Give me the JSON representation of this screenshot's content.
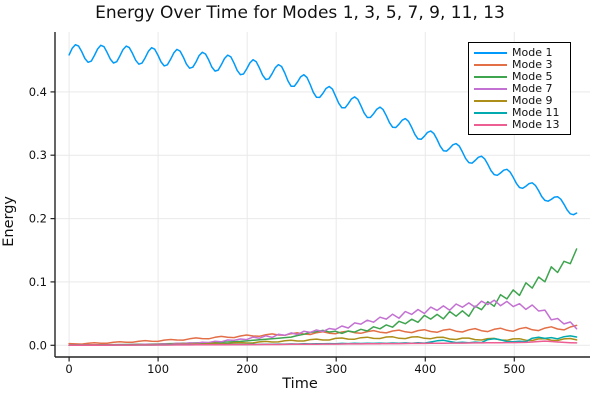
{
  "chart_data": {
    "type": "line",
    "title": "Energy Over Time for Modes 1, 3, 5, 7, 9, 11, 13",
    "xlabel": "Time",
    "ylabel": "Energy",
    "xlim": [
      -15.8,
      585
    ],
    "ylim": [
      -0.0185,
      0.4945
    ],
    "grid": true,
    "legend_position": "top-right",
    "xticks": [
      0,
      100,
      200,
      300,
      400,
      500
    ],
    "xtick_labels": [
      "0",
      "100",
      "200",
      "300",
      "400",
      "500"
    ],
    "yticks": [
      0.0,
      0.1,
      0.2,
      0.3,
      0.4
    ],
    "ytick_labels": [
      "0.0",
      "0.1",
      "0.2",
      "0.3",
      "0.4"
    ],
    "series": [
      {
        "name": "Mode 1",
        "color": "#009AFA",
        "x_start": 0,
        "x_step": 3.5625,
        "values": [
          0.4583,
          0.4687,
          0.4745,
          0.4722,
          0.4632,
          0.4526,
          0.4466,
          0.4486,
          0.4574,
          0.4677,
          0.4735,
          0.4713,
          0.4623,
          0.4517,
          0.4456,
          0.4476,
          0.4564,
          0.4667,
          0.4723,
          0.4699,
          0.4607,
          0.4498,
          0.4436,
          0.4454,
          0.454,
          0.4641,
          0.4697,
          0.4673,
          0.4581,
          0.4472,
          0.441,
          0.4428,
          0.4514,
          0.4615,
          0.467,
          0.4644,
          0.4549,
          0.4438,
          0.4374,
          0.4389,
          0.4472,
          0.4572,
          0.4625,
          0.4598,
          0.4504,
          0.4393,
          0.4328,
          0.4344,
          0.4427,
          0.4526,
          0.458,
          0.4552,
          0.4454,
          0.4339,
          0.4271,
          0.4282,
          0.4362,
          0.4457,
          0.4507,
          0.4476,
          0.4378,
          0.4263,
          0.4195,
          0.4206,
          0.4286,
          0.4381,
          0.4431,
          0.44,
          0.4298,
          0.4171,
          0.4089,
          0.4088,
          0.4155,
          0.4236,
          0.4271,
          0.4227,
          0.4117,
          0.3993,
          0.3914,
          0.3913,
          0.3976,
          0.4053,
          0.4085,
          0.4043,
          0.3936,
          0.3821,
          0.3748,
          0.3748,
          0.3812,
          0.3887,
          0.392,
          0.3882,
          0.3781,
          0.3668,
          0.3596,
          0.3597,
          0.3656,
          0.3727,
          0.3759,
          0.372,
          0.3624,
          0.3514,
          0.3443,
          0.3437,
          0.349,
          0.3553,
          0.3578,
          0.3536,
          0.3439,
          0.3329,
          0.3258,
          0.3251,
          0.3301,
          0.336,
          0.3382,
          0.3341,
          0.3248,
          0.3142,
          0.3072,
          0.3065,
          0.311,
          0.3164,
          0.3184,
          0.3144,
          0.3052,
          0.295,
          0.2883,
          0.2874,
          0.2916,
          0.2967,
          0.2984,
          0.2944,
          0.2857,
          0.2758,
          0.2694,
          0.2683,
          0.2719,
          0.2764,
          0.2778,
          0.2737,
          0.2651,
          0.2555,
          0.2491,
          0.2478,
          0.2511,
          0.2552,
          0.2564,
          0.2524,
          0.2441,
          0.2349,
          0.2287,
          0.2275,
          0.2303,
          0.2339,
          0.2346,
          0.2306,
          0.2226,
          0.2137,
          0.2075,
          0.2061,
          0.2086
        ]
      },
      {
        "name": "Mode 3",
        "color": "#E36F47",
        "x_start": 0,
        "x_step": 7.125,
        "values": [
          0.0026,
          0.0021,
          0.0019,
          0.0032,
          0.0039,
          0.0032,
          0.0032,
          0.0047,
          0.0057,
          0.0049,
          0.0047,
          0.0065,
          0.0074,
          0.0065,
          0.0062,
          0.0082,
          0.0092,
          0.0083,
          0.0082,
          0.0102,
          0.0116,
          0.0105,
          0.0102,
          0.0126,
          0.014,
          0.0127,
          0.0122,
          0.0147,
          0.0162,
          0.0147,
          0.0141,
          0.0167,
          0.018,
          0.0163,
          0.0157,
          0.0182,
          0.0197,
          0.0178,
          0.017,
          0.0198,
          0.0212,
          0.0191,
          0.0183,
          0.021,
          0.0224,
          0.0199,
          0.0189,
          0.0216,
          0.0232,
          0.0206,
          0.0195,
          0.0226,
          0.024,
          0.0213,
          0.02,
          0.0231,
          0.0246,
          0.0218,
          0.0205,
          0.0239,
          0.0254,
          0.0223,
          0.021,
          0.0245,
          0.0263,
          0.023,
          0.0216,
          0.0253,
          0.027,
          0.0236,
          0.0222,
          0.0261,
          0.028,
          0.0245,
          0.0231,
          0.0271,
          0.0292,
          0.0257,
          0.0243,
          0.0289,
          0.0314
        ]
      },
      {
        "name": "Mode 5",
        "color": "#3EA44E",
        "x_start": 0,
        "x_step": 7.125,
        "values": [
          0.0005,
          0.0006,
          0.0006,
          0.0007,
          0.0008,
          0.0009,
          0.0009,
          0.001,
          0.0011,
          0.0013,
          0.0014,
          0.0016,
          0.0017,
          0.0018,
          0.002,
          0.0023,
          0.0026,
          0.0028,
          0.0031,
          0.0034,
          0.0037,
          0.0039,
          0.0042,
          0.0045,
          0.0048,
          0.0052,
          0.0057,
          0.0062,
          0.0069,
          0.0078,
          0.0086,
          0.0095,
          0.0104,
          0.0112,
          0.0121,
          0.0129,
          0.0154,
          0.0173,
          0.0203,
          0.0215,
          0.0236,
          0.021,
          0.0221,
          0.0187,
          0.0226,
          0.0208,
          0.0252,
          0.0225,
          0.0292,
          0.026,
          0.0321,
          0.0286,
          0.0378,
          0.034,
          0.0412,
          0.0363,
          0.0472,
          0.0413,
          0.0488,
          0.0416,
          0.0533,
          0.0459,
          0.0545,
          0.0458,
          0.0618,
          0.0561,
          0.0688,
          0.0616,
          0.0799,
          0.0732,
          0.0874,
          0.0788,
          0.0987,
          0.0902,
          0.1077,
          0.1002,
          0.1238,
          0.1149,
          0.1326,
          0.1287,
          0.152
        ]
      },
      {
        "name": "Mode 7",
        "color": "#C371D2",
        "x_start": 0,
        "x_step": 7.125,
        "values": [
          0.0003,
          0.0003,
          0.0005,
          0.0004,
          0.0007,
          0.0005,
          0.0009,
          0.0007,
          0.0011,
          0.0008,
          0.0013,
          0.001,
          0.0015,
          0.0012,
          0.0017,
          0.0022,
          0.0017,
          0.0031,
          0.0027,
          0.0037,
          0.0031,
          0.0049,
          0.0043,
          0.0065,
          0.0055,
          0.0083,
          0.0077,
          0.0099,
          0.0089,
          0.0129,
          0.0112,
          0.0149,
          0.0125,
          0.0174,
          0.0158,
          0.0195,
          0.017,
          0.022,
          0.0203,
          0.0241,
          0.0216,
          0.0265,
          0.0249,
          0.0304,
          0.0273,
          0.0353,
          0.0334,
          0.0396,
          0.0364,
          0.0444,
          0.0414,
          0.0491,
          0.0428,
          0.0533,
          0.0488,
          0.0565,
          0.0502,
          0.0602,
          0.0551,
          0.0622,
          0.0553,
          0.0652,
          0.0601,
          0.0669,
          0.0599,
          0.0696,
          0.0643,
          0.0712,
          0.0624,
          0.0692,
          0.0611,
          0.0657,
          0.0566,
          0.0636,
          0.0541,
          0.0555,
          0.0402,
          0.0422,
          0.0337,
          0.0368,
          0.026
        ]
      },
      {
        "name": "Mode 9",
        "color": "#AC8E18",
        "x_start": 0,
        "x_step": 7.125,
        "values": [
          0.0002,
          0.0002,
          0.0003,
          0.0003,
          0.0004,
          0.0004,
          0.0005,
          0.0005,
          0.0006,
          0.0006,
          0.0007,
          0.0008,
          0.0008,
          0.0009,
          0.001,
          0.0011,
          0.0013,
          0.0014,
          0.0016,
          0.0017,
          0.0019,
          0.002,
          0.0026,
          0.0031,
          0.0025,
          0.0026,
          0.0038,
          0.0043,
          0.0036,
          0.0038,
          0.0053,
          0.0061,
          0.0052,
          0.0053,
          0.0071,
          0.008,
          0.0068,
          0.0068,
          0.0089,
          0.0098,
          0.0084,
          0.0084,
          0.0108,
          0.0115,
          0.0097,
          0.0096,
          0.012,
          0.0127,
          0.0108,
          0.0107,
          0.013,
          0.0134,
          0.011,
          0.0106,
          0.013,
          0.0134,
          0.011,
          0.0104,
          0.0125,
          0.0126,
          0.0099,
          0.0092,
          0.0113,
          0.0114,
          0.0089,
          0.0083,
          0.0106,
          0.0109,
          0.0083,
          0.0078,
          0.01,
          0.0104,
          0.008,
          0.0076,
          0.01,
          0.0104,
          0.008,
          0.0076,
          0.0101,
          0.0107,
          0.0085
        ]
      },
      {
        "name": "Mode 11",
        "color": "#00AAAE",
        "x_start": 0,
        "x_step": 7.125,
        "values": [
          0.0001,
          0.0001,
          0.0002,
          0.0002,
          0.0002,
          0.0003,
          0.0003,
          0.0003,
          0.0004,
          0.0004,
          0.0004,
          0.0005,
          0.0005,
          0.0005,
          0.0006,
          0.0006,
          0.0007,
          0.0007,
          0.0008,
          0.0008,
          0.0009,
          0.001,
          0.001,
          0.0011,
          0.0011,
          0.0012,
          0.0012,
          0.0013,
          0.0013,
          0.0015,
          0.0014,
          0.0017,
          0.0016,
          0.0019,
          0.0018,
          0.0021,
          0.002,
          0.0023,
          0.0022,
          0.0025,
          0.0024,
          0.0027,
          0.0025,
          0.0029,
          0.0026,
          0.0031,
          0.0028,
          0.0032,
          0.0029,
          0.0034,
          0.003,
          0.0036,
          0.0031,
          0.0038,
          0.0033,
          0.004,
          0.0035,
          0.0052,
          0.0071,
          0.0078,
          0.006,
          0.0042,
          0.0048,
          0.0041,
          0.005,
          0.0043,
          0.009,
          0.0102,
          0.0086,
          0.006,
          0.0055,
          0.0064,
          0.0058,
          0.0112,
          0.0128,
          0.0108,
          0.0122,
          0.0102,
          0.0135,
          0.0148,
          0.013
        ]
      },
      {
        "name": "Mode 13",
        "color": "#ED5E93",
        "x_start": 0,
        "x_step": 7.125,
        "values": [
          0.0001,
          0.0001,
          0.0001,
          0.0002,
          0.0002,
          0.0002,
          0.0002,
          0.0003,
          0.0003,
          0.0003,
          0.0003,
          0.0004,
          0.0004,
          0.0004,
          0.0005,
          0.0005,
          0.0005,
          0.0006,
          0.0006,
          0.0006,
          0.0007,
          0.0007,
          0.0008,
          0.0008,
          0.0009,
          0.0009,
          0.001,
          0.001,
          0.0011,
          0.0011,
          0.0012,
          0.0012,
          0.0013,
          0.0013,
          0.0014,
          0.0015,
          0.0015,
          0.0016,
          0.0017,
          0.0017,
          0.0018,
          0.0019,
          0.0019,
          0.002,
          0.0021,
          0.0022,
          0.0022,
          0.0023,
          0.0024,
          0.0025,
          0.0026,
          0.0026,
          0.0027,
          0.0028,
          0.0029,
          0.003,
          0.003,
          0.0031,
          0.0032,
          0.0033,
          0.0034,
          0.0035,
          0.0035,
          0.0036,
          0.0037,
          0.0038,
          0.0039,
          0.004,
          0.0041,
          0.0042,
          0.0043,
          0.0044,
          0.0045,
          0.0052,
          0.006,
          0.0066,
          0.006,
          0.0052,
          0.0045,
          0.004,
          0.0038
        ]
      }
    ]
  },
  "colors": {
    "background": "#ffffff",
    "grid": "#e9e9e9",
    "axis": "#242424",
    "text": "#111111"
  }
}
